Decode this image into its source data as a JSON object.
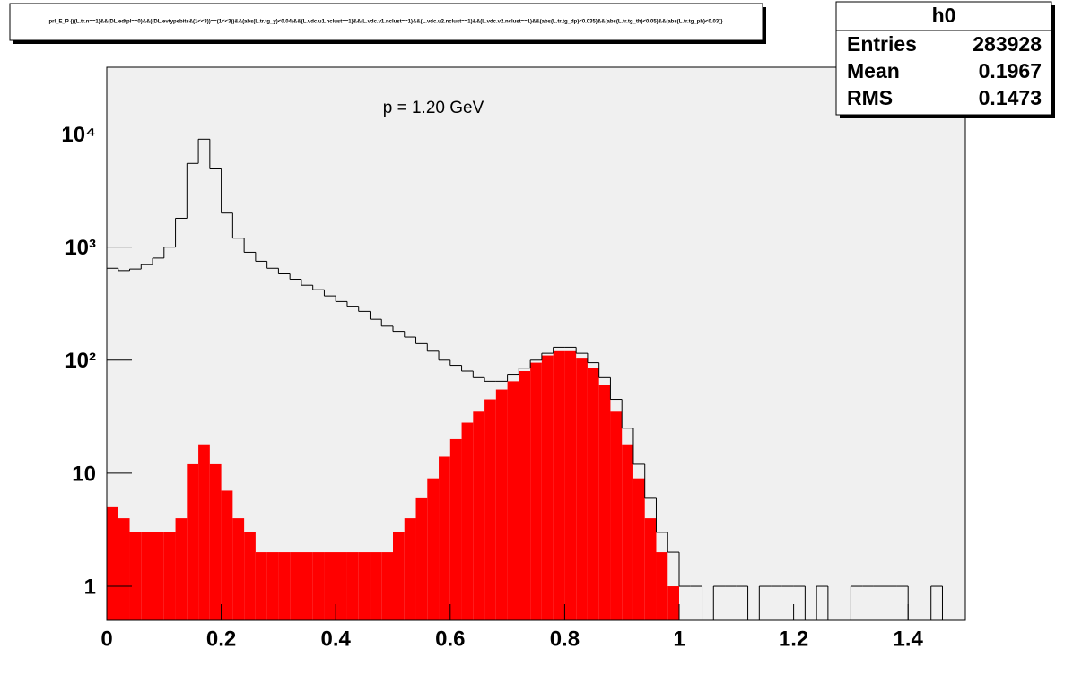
{
  "chart_data": {
    "type": "histogram",
    "title": "prl_E_P {((L.tr.n==1)&&(DL.edtpl==0)&&((DL.evtypebits&(1<<3))==(1<<3))&&(abs(L.tr.tg_y)<0.04)&&(L.vdc.u1.nclust==1)&&(L.vdc.v1.nclust==1)&&(L.vdc.u2.nclust==1)&&(L.vdc.v2.nclust==1)&&(abs(L.tr.tg_dp)<0.035)&&(abs(L.tr.tg_th)<0.05)&&(abs(L.tr.tg_ph)<0.03)}",
    "annotation": "p = 1.20 GeV",
    "stats_title": "h0",
    "stats": [
      {
        "label": "Entries",
        "value": 283928
      },
      {
        "label": "Mean",
        "value": 0.1967
      },
      {
        "label": "RMS",
        "value": 0.1473
      }
    ],
    "log_y": true,
    "bins": [
      0,
      0.02,
      0.04,
      0.06,
      0.08,
      0.1,
      0.12,
      0.14,
      0.16,
      0.18,
      0.2,
      0.22,
      0.24,
      0.26,
      0.28,
      0.3,
      0.32,
      0.34,
      0.36,
      0.38,
      0.4,
      0.42,
      0.44,
      0.46,
      0.48,
      0.5,
      0.52,
      0.54,
      0.56,
      0.58,
      0.6,
      0.62,
      0.64,
      0.66,
      0.68,
      0.7,
      0.72,
      0.74,
      0.76,
      0.78,
      0.8,
      0.82,
      0.84,
      0.86,
      0.88,
      0.9,
      0.92,
      0.94,
      0.96,
      0.98,
      1,
      1.02,
      1.04,
      1.06,
      1.08,
      1.1,
      1.12,
      1.14,
      1.16,
      1.18,
      1.2,
      1.22,
      1.24,
      1.26,
      1.28,
      1.3,
      1.32,
      1.34,
      1.36,
      1.38,
      1.4,
      1.42,
      1.44,
      1.46,
      1.48,
      1.5
    ],
    "series": [
      {
        "style": "filled",
        "color": "#ff0000",
        "values": [
          5,
          4,
          3,
          3,
          3,
          3,
          4,
          12,
          18,
          12,
          7,
          4,
          3,
          2,
          2,
          2,
          2,
          2,
          2,
          2,
          2,
          2,
          2,
          2,
          2,
          3,
          4,
          6,
          9,
          14,
          20,
          28,
          35,
          45,
          55,
          65,
          80,
          95,
          110,
          120,
          120,
          105,
          85,
          60,
          35,
          18,
          9,
          4,
          2,
          1,
          0,
          0,
          0,
          0,
          0,
          0,
          0,
          0,
          0,
          0,
          0,
          0,
          0,
          0,
          0,
          0,
          0,
          0,
          0,
          0,
          0,
          0,
          0,
          0,
          0
        ]
      },
      {
        "style": "outline",
        "color": "#000000",
        "values": [
          650,
          620,
          640,
          700,
          800,
          1000,
          1800,
          5500,
          9000,
          5000,
          2000,
          1200,
          900,
          750,
          650,
          580,
          520,
          460,
          420,
          370,
          330,
          300,
          270,
          230,
          200,
          180,
          160,
          140,
          120,
          100,
          90,
          80,
          70,
          65,
          65,
          75,
          85,
          100,
          115,
          130,
          130,
          115,
          95,
          70,
          45,
          25,
          12,
          6,
          3,
          2,
          1,
          1,
          0,
          1,
          1,
          1,
          0,
          1,
          1,
          1,
          1,
          0,
          1,
          0,
          0,
          1,
          1,
          1,
          1,
          1,
          0,
          0,
          1,
          0,
          0
        ]
      }
    ],
    "xlim": [
      0,
      1.5
    ],
    "xticks": [
      0,
      0.2,
      0.4,
      0.6,
      0.8,
      1,
      1.2,
      1.4
    ],
    "ylim": [
      0.5,
      39000
    ],
    "yticks": [
      1,
      10,
      {
        "value": 100,
        "label": "10²"
      },
      {
        "value": 1000,
        "label": "10³"
      },
      {
        "value": 10000,
        "label": "10⁴"
      }
    ],
    "plot_background": "#f0f0f0"
  }
}
